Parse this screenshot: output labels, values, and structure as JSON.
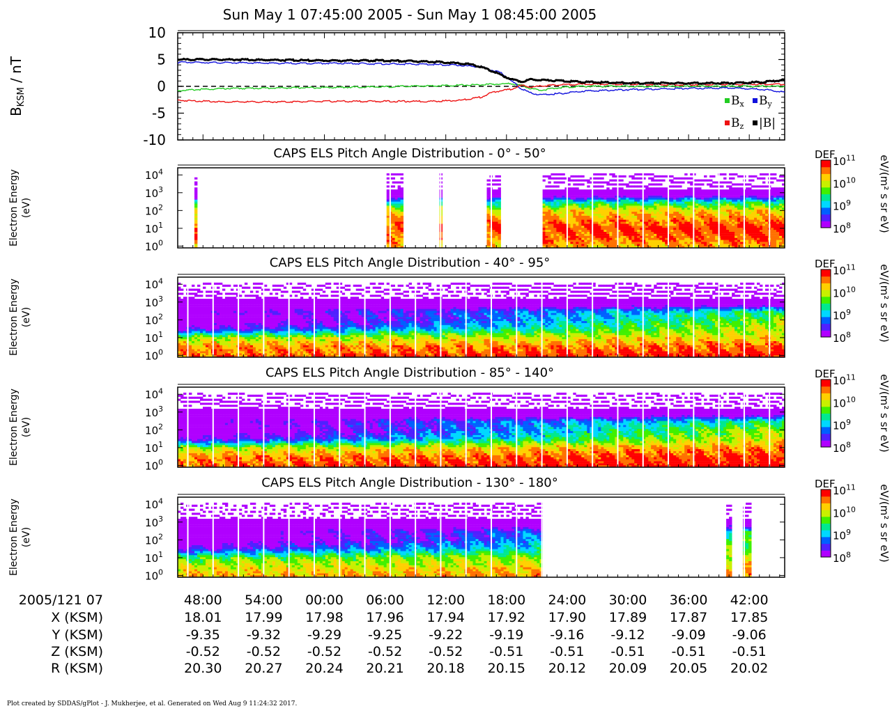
{
  "title": "Sun May 1 07:45:00 2005 - Sun May 1 08:45:00 2005",
  "footer": "Plot created by SDDAS/gPlot - J. Mukherjee, et al.  Generated on Wed Aug 9 11:24:32 2017.",
  "colors": {
    "bx": "#22cc22",
    "by": "#1111dd",
    "bz": "#ee1111",
    "bmag": "#000000",
    "zero_line": "#000000",
    "gap_line": "#ffffff",
    "colormap": [
      "#b000ff",
      "#5020ff",
      "#0060ff",
      "#00d8ff",
      "#00e890",
      "#40f000",
      "#c8f000",
      "#ffd000",
      "#ff7000",
      "#ff0000"
    ]
  },
  "chart_data": [
    {
      "type": "line",
      "name_key": "mag",
      "ylabel_main": "B",
      "ylabel_sub": "KSM",
      "ylabel_rest": " / nT",
      "ylim": [
        -10,
        10
      ],
      "yticks": [
        "10",
        "5",
        "0",
        "-5",
        "-10"
      ],
      "xlim_min": [
        0,
        60
      ],
      "zero_line": "dashed",
      "legend": [
        {
          "key": "bx",
          "main": "B",
          "sub": "x"
        },
        {
          "key": "by",
          "main": "B",
          "sub": "y"
        },
        {
          "key": "bz",
          "main": "B",
          "sub": "z"
        },
        {
          "key": "bmag",
          "main": "|B|",
          "sub": ""
        }
      ],
      "legend_position": "bottom-right",
      "series": [
        {
          "key": "bx",
          "x": [
            0,
            2,
            5,
            10,
            15,
            20,
            25,
            30,
            33,
            34,
            35,
            36,
            38,
            40,
            45,
            50,
            55,
            60
          ],
          "y": [
            -0.8,
            -0.6,
            -0.4,
            -0.3,
            -0.2,
            -0.1,
            0.1,
            0.3,
            0.5,
            0.2,
            -0.5,
            -0.7,
            -0.2,
            0.0,
            0.0,
            0.0,
            0.0,
            0.0
          ]
        },
        {
          "key": "by",
          "x": [
            0,
            5,
            10,
            15,
            20,
            25,
            28,
            30,
            32,
            33,
            34,
            35,
            36,
            38,
            40,
            45,
            50,
            55,
            58,
            60
          ],
          "y": [
            4.5,
            4.4,
            4.3,
            4.3,
            4.2,
            4.1,
            3.9,
            3.6,
            2.5,
            1.0,
            -0.5,
            -1.3,
            -1.6,
            -1.3,
            -0.9,
            -0.6,
            -0.4,
            -0.3,
            -0.6,
            -1.1
          ]
        },
        {
          "key": "bz",
          "x": [
            0,
            3,
            5,
            10,
            15,
            20,
            25,
            28,
            30,
            31,
            32,
            33,
            34,
            35,
            36,
            38,
            40,
            45,
            50,
            55,
            60
          ],
          "y": [
            -2.6,
            -2.8,
            -2.9,
            -2.9,
            -2.8,
            -2.8,
            -2.8,
            -2.6,
            -2.0,
            -1.2,
            -0.8,
            -0.5,
            0.2,
            -0.2,
            0.1,
            0.3,
            0.4,
            0.4,
            0.3,
            0.4,
            0.4
          ]
        },
        {
          "key": "bmag",
          "x": [
            0,
            5,
            10,
            15,
            20,
            23,
            25,
            27,
            29,
            30,
            31,
            32,
            33,
            34,
            35,
            36,
            38,
            40,
            45,
            50,
            55,
            58,
            60
          ],
          "y": [
            5.0,
            5.0,
            4.9,
            4.8,
            4.8,
            4.7,
            4.6,
            4.4,
            4.1,
            3.6,
            2.9,
            2.1,
            1.3,
            0.9,
            1.3,
            1.2,
            1.0,
            0.8,
            0.6,
            0.6,
            0.6,
            0.8,
            1.2
          ]
        }
      ]
    },
    {
      "type": "heatmap",
      "title": "CAPS ELS Pitch Angle Distribution - 0° - 50°",
      "ylabel_line1": "Electron Energy",
      "ylabel_line2": "(eV)",
      "ylim_log10": [
        -0.1,
        4.4
      ],
      "ytick_exponents": [
        "0",
        "1",
        "2",
        "3",
        "4"
      ],
      "colorbar": {
        "title": "DEF",
        "unit": "eV/(m² s sr eV)",
        "exponents": [
          "11",
          "10",
          "9",
          "8"
        ],
        "range_log10": [
          8,
          11
        ]
      },
      "valid_minutes": [
        [
          1.7,
          2.0
        ],
        [
          20.6,
          22.3
        ],
        [
          25.8,
          26.1
        ],
        [
          30.6,
          32.0
        ],
        [
          36.0,
          60
        ]
      ],
      "profile_low": [
        3,
        4.5,
        7,
        9,
        10,
        10.4,
        10.6,
        10.5,
        10.2
      ],
      "profile_high": [
        4,
        5.0,
        7.5,
        9.3,
        10.2,
        10.5,
        10.8,
        10.7,
        10.4
      ]
    },
    {
      "type": "heatmap",
      "title": "CAPS ELS Pitch Angle Distribution - 40° - 95°",
      "ylabel_line1": "Electron Energy",
      "ylabel_line2": "(eV)",
      "ylim_log10": [
        -0.1,
        4.4
      ],
      "ytick_exponents": [
        "0",
        "1",
        "2",
        "3",
        "4"
      ],
      "colorbar": {
        "title": "DEF",
        "unit": "eV/(m² s sr eV)",
        "exponents": [
          "11",
          "10",
          "9",
          "8"
        ],
        "range_log10": [
          8,
          11
        ]
      },
      "valid_minutes": [
        [
          0,
          60
        ]
      ],
      "profile_low": [
        3,
        4.5,
        6.8,
        8.0,
        7.6,
        8.2,
        9.8,
        10.4,
        10.6
      ],
      "profile_high": [
        4,
        5.0,
        7.5,
        9.3,
        9.8,
        10.0,
        10.2,
        10.6,
        10.9
      ]
    },
    {
      "type": "heatmap",
      "title": "CAPS ELS Pitch Angle Distribution - 85° - 140°",
      "ylabel_line1": "Electron Energy",
      "ylabel_line2": "(eV)",
      "ylim_log10": [
        -0.1,
        4.4
      ],
      "ytick_exponents": [
        "0",
        "1",
        "2",
        "3",
        "4"
      ],
      "colorbar": {
        "title": "DEF",
        "unit": "eV/(m² s sr eV)",
        "exponents": [
          "11",
          "10",
          "9",
          "8"
        ],
        "range_log10": [
          8,
          11
        ]
      },
      "valid_minutes": [
        [
          0,
          60
        ]
      ],
      "profile_low": [
        3,
        4.5,
        6.8,
        8.0,
        7.6,
        8.1,
        9.8,
        10.4,
        10.6
      ],
      "profile_high": [
        4,
        5.0,
        7.5,
        9.3,
        9.9,
        10.1,
        10.5,
        10.8,
        11.0
      ]
    },
    {
      "type": "heatmap",
      "title": "CAPS ELS Pitch Angle Distribution - 130° - 180°",
      "ylabel_line1": "Electron Energy",
      "ylabel_line2": "(eV)",
      "ylim_log10": [
        -0.1,
        4.4
      ],
      "ytick_exponents": [
        "0",
        "1",
        "2",
        "3",
        "4"
      ],
      "colorbar": {
        "title": "DEF",
        "unit": "eV/(m² s sr eV)",
        "exponents": [
          "11",
          "10",
          "9",
          "8"
        ],
        "range_log10": [
          8,
          11
        ]
      },
      "valid_minutes": [
        [
          0,
          36.0
        ],
        [
          54.3,
          54.9
        ],
        [
          55.9,
          56.8
        ]
      ],
      "profile_low": [
        3,
        4.5,
        6.8,
        7.8,
        7.6,
        8.3,
        9.6,
        10.0,
        10.3
      ],
      "profile_high": [
        4,
        5.0,
        7.5,
        9.3,
        9.7,
        9.8,
        10.0,
        10.2,
        10.5
      ]
    }
  ],
  "time_axis": {
    "row_labels": [
      "2005/121 07",
      "X (KSM)",
      "Y (KSM)",
      "Z (KSM)",
      "R (KSM)"
    ],
    "tick_minutes": [
      2.5,
      8.5,
      14.5,
      20.5,
      26.5,
      32.5,
      38.5,
      44.5,
      50.5,
      56.5
    ],
    "ticks": [
      {
        "time": "48:00",
        "x": "18.01",
        "y": "-9.35",
        "z": "-0.52",
        "r": "20.30"
      },
      {
        "time": "54:00",
        "x": "17.99",
        "y": "-9.32",
        "z": "-0.52",
        "r": "20.27"
      },
      {
        "time": "00:00",
        "x": "17.98",
        "y": "-9.29",
        "z": "-0.52",
        "r": "20.24"
      },
      {
        "time": "06:00",
        "x": "17.96",
        "y": "-9.25",
        "z": "-0.52",
        "r": "20.21"
      },
      {
        "time": "12:00",
        "x": "17.94",
        "y": "-9.22",
        "z": "-0.52",
        "r": "20.18"
      },
      {
        "time": "18:00",
        "x": "17.92",
        "y": "-9.19",
        "z": "-0.51",
        "r": "20.15"
      },
      {
        "time": "24:00",
        "x": "17.90",
        "y": "-9.16",
        "z": "-0.51",
        "r": "20.12"
      },
      {
        "time": "30:00",
        "x": "17.89",
        "y": "-9.12",
        "z": "-0.51",
        "r": "20.09"
      },
      {
        "time": "36:00",
        "x": "17.87",
        "y": "-9.09",
        "z": "-0.51",
        "r": "20.05"
      },
      {
        "time": "42:00",
        "x": "17.85",
        "y": "-9.06",
        "z": "-0.51",
        "r": "20.02"
      }
    ]
  }
}
